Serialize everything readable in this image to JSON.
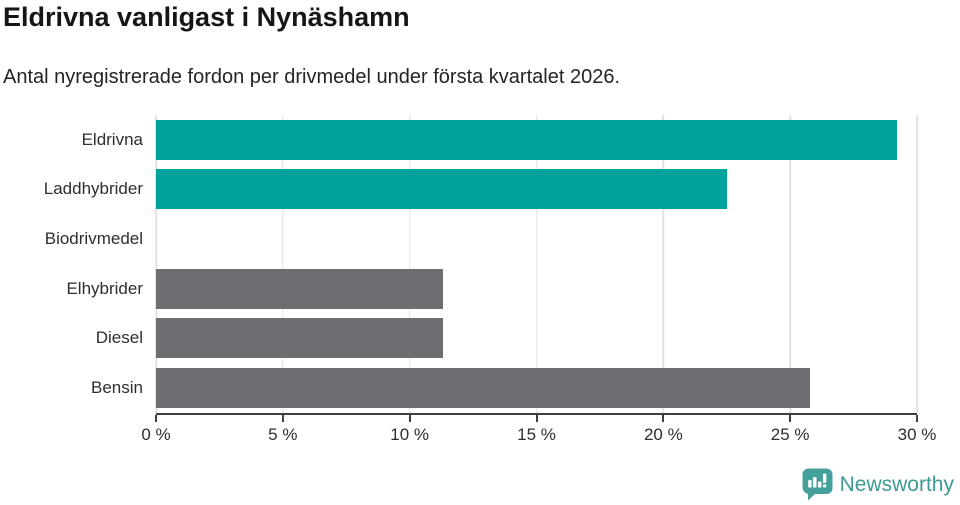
{
  "header": {
    "title": "Eldrivna vanligast i Nynäshamn",
    "subtitle": "Antal nyregistrerade fordon per drivmedel under första kvartalet 2026."
  },
  "chart_data": {
    "type": "bar",
    "orientation": "horizontal",
    "title": "Eldrivna vanligast i Nynäshamn",
    "subtitle": "Antal nyregistrerade fordon per drivmedel under första kvartalet 2026.",
    "categories": [
      "Eldrivna",
      "Laddhybrider",
      "Biodrivmedel",
      "Elhybrider",
      "Diesel",
      "Bensin"
    ],
    "values": [
      29.2,
      22.5,
      0,
      11.3,
      11.3,
      25.8
    ],
    "unit": "%",
    "bar_colors": [
      "#00a39b",
      "#00a39b",
      "#6d6d72",
      "#6d6d72",
      "#6d6d72",
      "#6d6d72"
    ],
    "x_ticks": [
      "0 %",
      "5 %",
      "10 %",
      "15 %",
      "20 %",
      "25 %",
      "30 %"
    ],
    "x_tick_values": [
      0,
      5,
      10,
      15,
      20,
      25,
      30
    ],
    "xlim": [
      0,
      30
    ],
    "xlabel": "",
    "ylabel": "",
    "grid": true,
    "legend": "none"
  },
  "colors": {
    "accent_teal": "#00a39b",
    "neutral_gray": "#6d6d72",
    "gridline": "#e2e2e2",
    "axis": "#3f3f3f",
    "text": "#2e2e2e",
    "brand": "#3d9a94"
  },
  "footer": {
    "brand": "Newsworthy",
    "logo_icon": "bar-chart-speech-bubble-icon"
  }
}
